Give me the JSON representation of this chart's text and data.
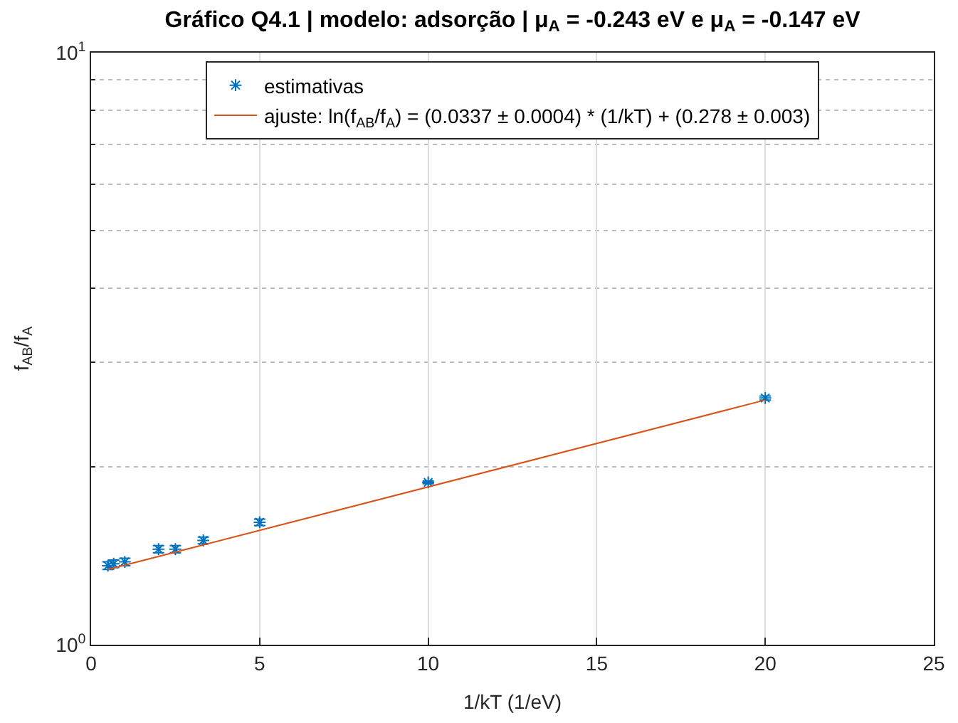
{
  "chart_data": {
    "type": "scatter",
    "title": "Gráfico Q4.1 | modelo: adsorção | μ$_{A}$ = -0.243 eV e μ$_{A}$ = -0.147 eV",
    "xlabel": "1/kT (1/eV)",
    "ylabel": "f$_{AB}$/f$_{A}$",
    "x": [
      0.5,
      0.67,
      1,
      2,
      2.5,
      3.33,
      5,
      10,
      20
    ],
    "series": [
      {
        "name": "estimativas",
        "color": "#0072bd",
        "marker": "cross",
        "values": [
          1.36,
          1.37,
          1.38,
          1.45,
          1.45,
          1.5,
          1.61,
          1.88,
          2.61
        ],
        "errors": [
          0.02,
          0.02,
          0.02,
          0.02,
          0.02,
          0.02,
          0.02,
          0.01,
          0.02
        ]
      },
      {
        "name": "ajuste: ln(f$_{AB}$/f$_{A}$) = (0.0337 ± 0.0004) * (1/kT) + (0.278 ± 0.003)",
        "type": "line",
        "color": "#d95319",
        "marker": "none",
        "line_style": "solid",
        "x": [
          0.5,
          20
        ],
        "values": [
          1.34,
          2.59
        ]
      }
    ],
    "log": "y",
    "xlim": [
      0,
      25
    ],
    "xticks": [
      0,
      5,
      10,
      15,
      20,
      25
    ],
    "ylim": [
      1,
      10
    ],
    "yticks": [
      {
        "value": 1,
        "label": "10$^{0}$"
      },
      {
        "value": 10,
        "label": "10$^{1}$"
      }
    ],
    "grid": true,
    "legend": "top"
  }
}
